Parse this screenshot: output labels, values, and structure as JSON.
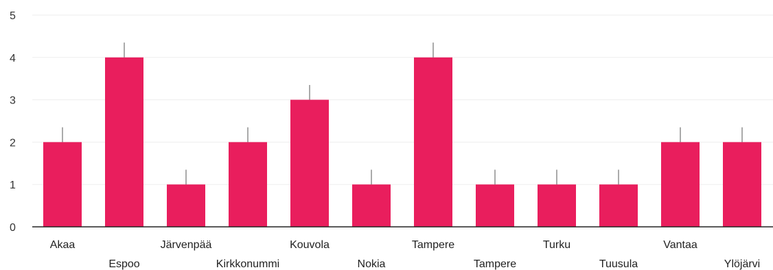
{
  "chart_data": {
    "type": "bar",
    "categories": [
      "Akaa",
      "Espoo",
      "Järvenpää",
      "Kirkkonummi",
      "Kouvola",
      "Nokia",
      "Tampere",
      "Tampere",
      "Turku",
      "Tuusula",
      "Vantaa",
      "Ylöjärvi"
    ],
    "values": [
      2,
      4,
      1,
      2,
      3,
      1,
      4,
      1,
      1,
      1,
      2,
      2
    ],
    "error_upper": [
      2.35,
      4.35,
      1.35,
      2.35,
      3.35,
      1.35,
      4.35,
      1.35,
      1.35,
      1.35,
      2.35,
      2.35
    ],
    "yticks": [
      0,
      1,
      2,
      3,
      4,
      5
    ],
    "ylim": [
      0,
      5
    ],
    "title": "",
    "xlabel": "",
    "ylabel": "",
    "grid": true,
    "bar_color": "#e91e5d",
    "axis_color": "#222222",
    "grid_color": "#eeeeee"
  }
}
